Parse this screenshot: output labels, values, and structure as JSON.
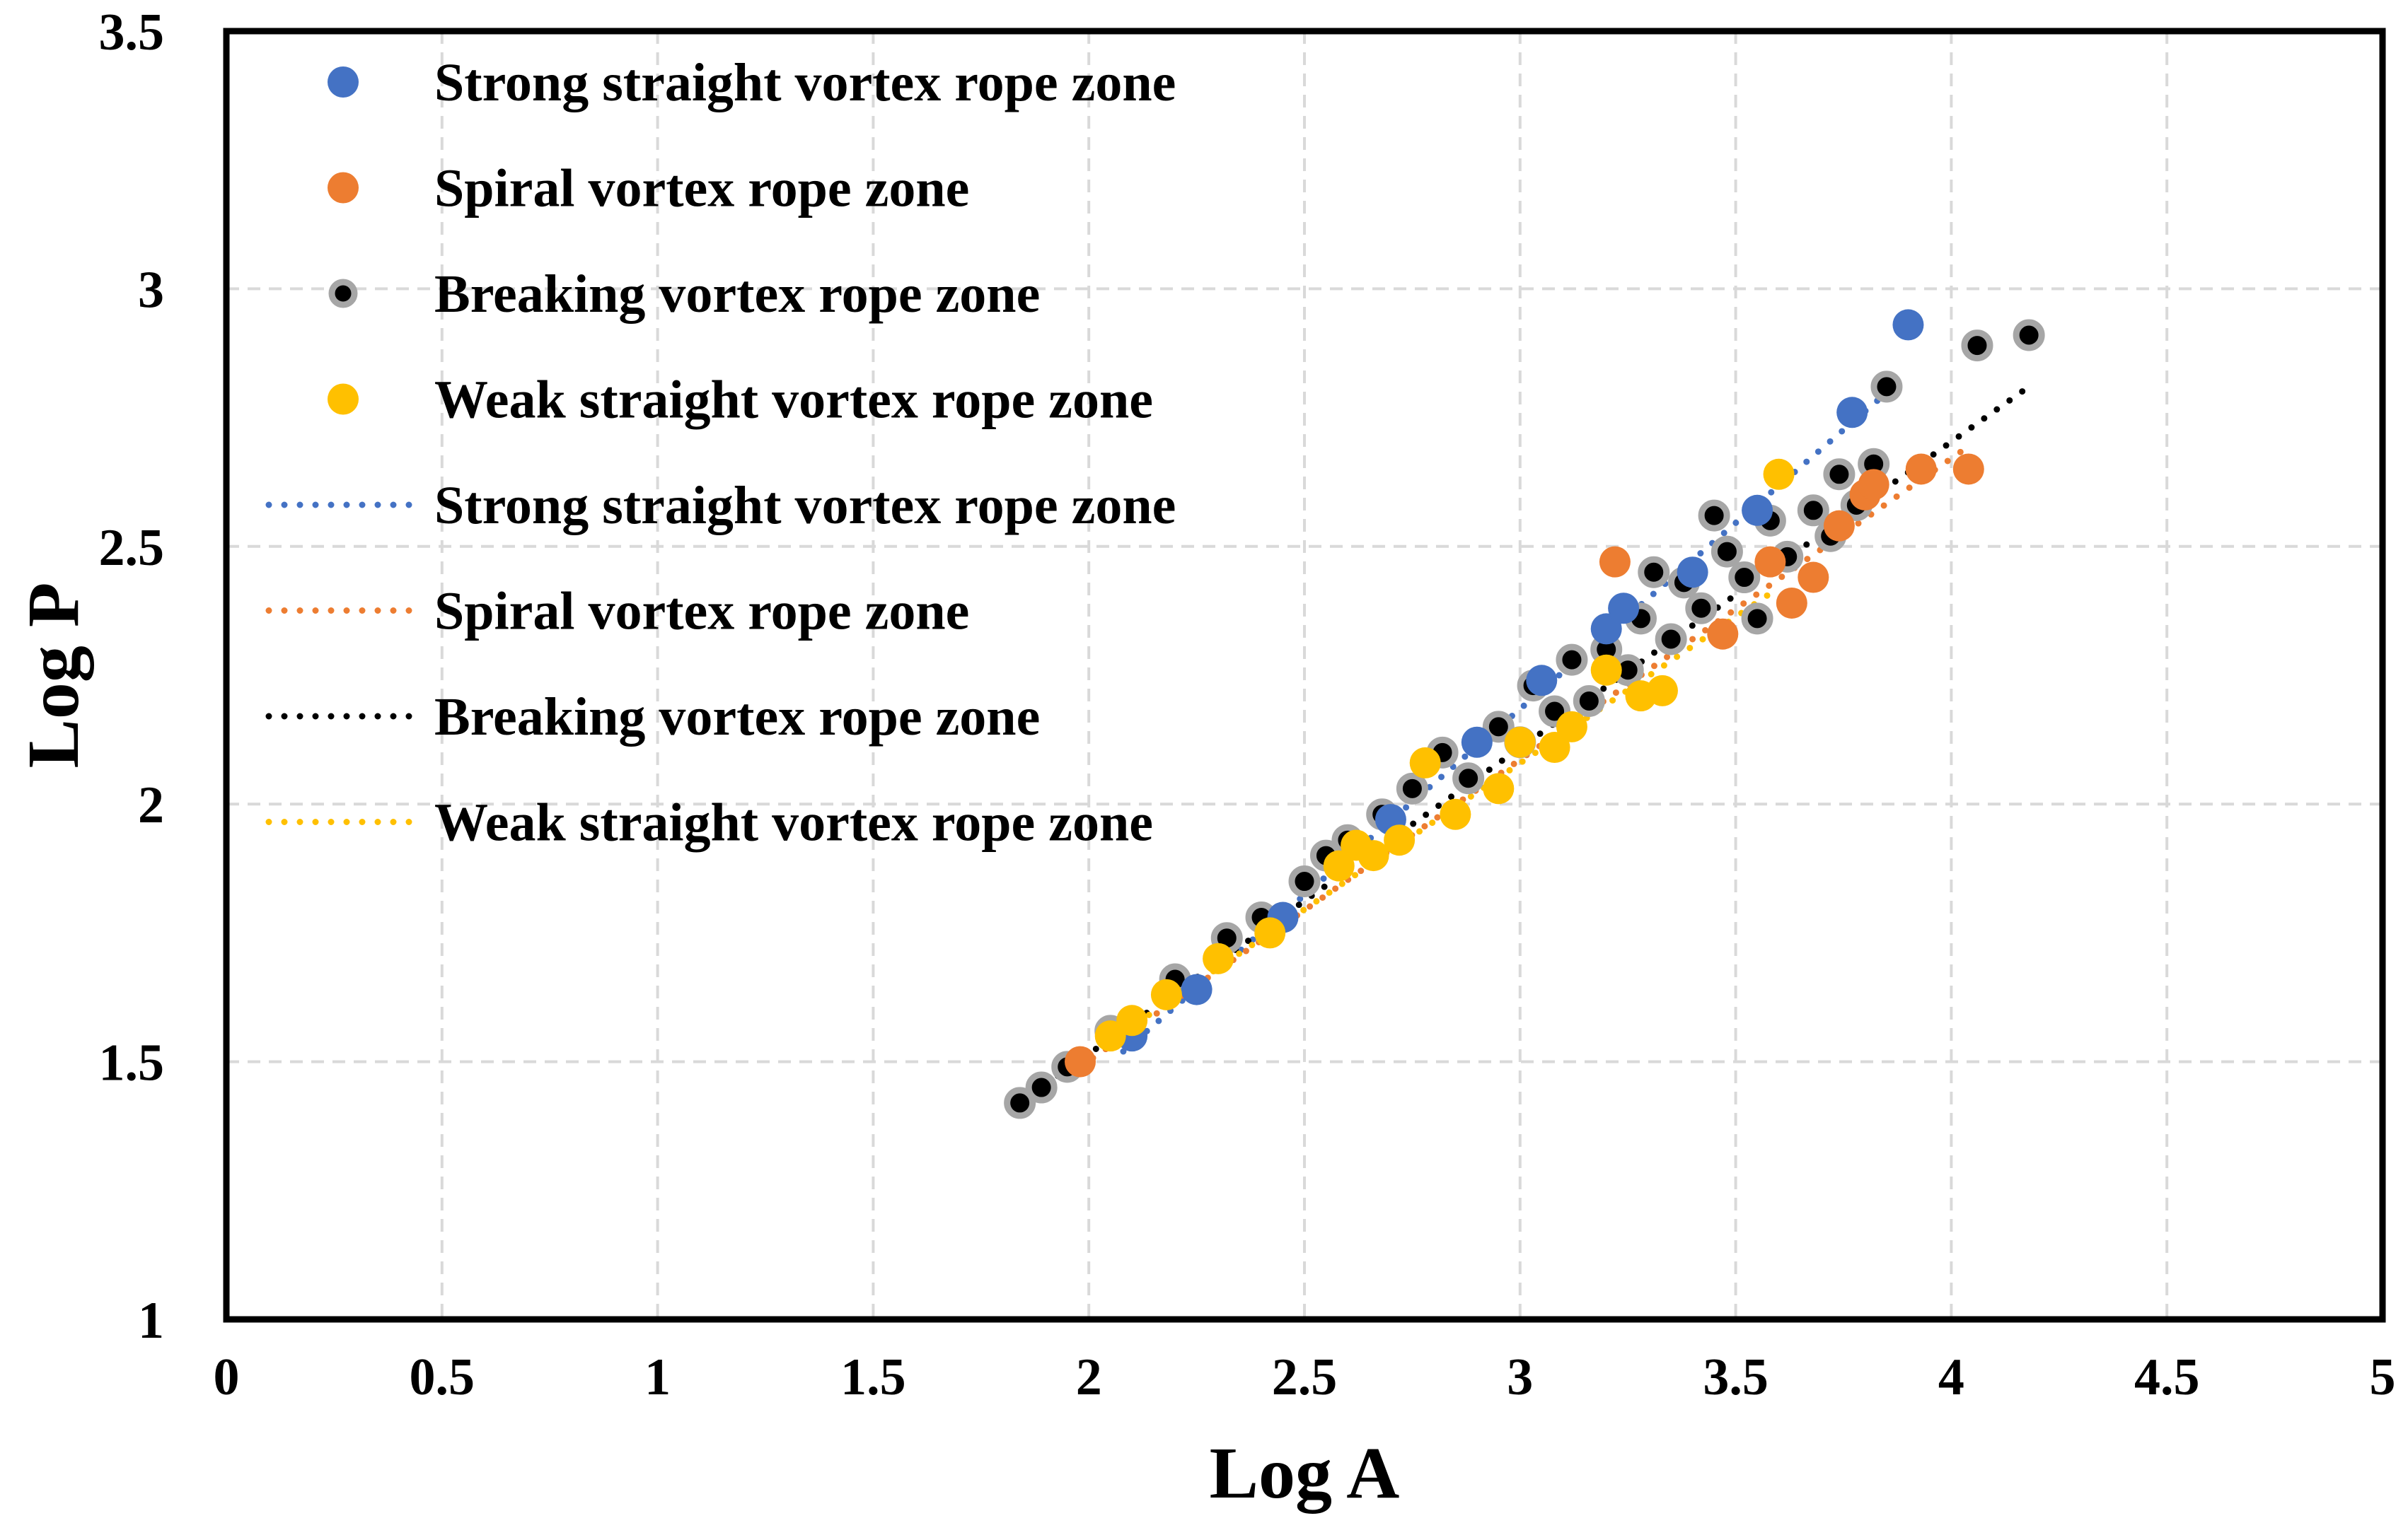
{
  "chart_data": {
    "type": "scatter",
    "xlabel": "Log A",
    "ylabel": "Log P",
    "xlim": [
      0,
      5
    ],
    "ylim": [
      1,
      3.5
    ],
    "xticks": [
      "0",
      "0.5",
      "1",
      "1.5",
      "2",
      "2.5",
      "3",
      "3.5",
      "4",
      "4.5",
      "5"
    ],
    "yticks": [
      "1",
      "1.5",
      "2",
      "2.5",
      "3",
      "3.5"
    ],
    "grid": true,
    "legend_position": "top-left",
    "colors": {
      "strong": "#4472C4",
      "spiral": "#ED7D31",
      "breaking": "#000000",
      "breaking_edge": "#A6A6A6",
      "weak": "#FFC000",
      "grid": "#D9D9D9"
    },
    "series": [
      {
        "name": "Strong straight vortex rope zone",
        "key": "strong",
        "x": [
          2.1,
          2.25,
          2.45,
          2.7,
          2.9,
          3.05,
          3.2,
          3.24,
          3.4,
          3.55,
          3.77,
          3.9
        ],
        "y": [
          1.55,
          1.64,
          1.78,
          1.97,
          2.12,
          2.24,
          2.34,
          2.38,
          2.45,
          2.57,
          2.76,
          2.93
        ]
      },
      {
        "name": "Spiral vortex rope zone",
        "key": "spiral",
        "x": [
          1.98,
          3.22,
          3.47,
          3.58,
          3.63,
          3.68,
          3.74,
          3.8,
          3.82,
          3.93,
          4.04
        ],
        "y": [
          1.5,
          2.47,
          2.33,
          2.47,
          2.39,
          2.44,
          2.54,
          2.6,
          2.62,
          2.65,
          2.65
        ]
      },
      {
        "name": "Breaking vortex rope zone",
        "key": "breaking",
        "x": [
          1.84,
          1.89,
          1.95,
          2.05,
          2.2,
          2.32,
          2.4,
          2.5,
          2.55,
          2.6,
          2.68,
          2.75,
          2.82,
          2.88,
          2.95,
          3.0,
          3.03,
          3.08,
          3.12,
          3.16,
          3.2,
          3.25,
          3.28,
          3.31,
          3.35,
          3.38,
          3.42,
          3.45,
          3.48,
          3.52,
          3.55,
          3.58,
          3.62,
          3.68,
          3.72,
          3.74,
          3.78,
          3.82,
          3.85,
          4.06,
          4.18
        ],
        "y": [
          1.42,
          1.45,
          1.49,
          1.56,
          1.66,
          1.74,
          1.78,
          1.85,
          1.9,
          1.93,
          1.98,
          2.03,
          2.1,
          2.05,
          2.15,
          2.12,
          2.23,
          2.18,
          2.28,
          2.2,
          2.3,
          2.26,
          2.36,
          2.45,
          2.32,
          2.43,
          2.38,
          2.56,
          2.49,
          2.44,
          2.36,
          2.55,
          2.48,
          2.57,
          2.52,
          2.64,
          2.58,
          2.66,
          2.81,
          2.89,
          2.91
        ]
      },
      {
        "name": "Weak straight vortex rope zone",
        "key": "weak",
        "x": [
          2.05,
          2.1,
          2.18,
          2.3,
          2.42,
          2.58,
          2.62,
          2.66,
          2.72,
          2.78,
          2.85,
          2.95,
          3.0,
          3.08,
          3.12,
          3.2,
          3.28,
          3.33,
          3.6
        ],
        "y": [
          1.55,
          1.58,
          1.63,
          1.7,
          1.75,
          1.88,
          1.92,
          1.9,
          1.93,
          2.08,
          1.98,
          2.03,
          2.12,
          2.11,
          2.15,
          2.26,
          2.21,
          2.22,
          2.64
        ]
      }
    ],
    "trendlines": [
      {
        "name": "Strong straight vortex rope zone",
        "key": "strong",
        "x": [
          2.08,
          3.88
        ],
        "y": [
          1.52,
          2.82
        ]
      },
      {
        "name": "Spiral vortex rope zone",
        "key": "spiral",
        "x": [
          1.98,
          4.05
        ],
        "y": [
          1.49,
          2.7
        ]
      },
      {
        "name": "Breaking vortex rope zone",
        "key": "breaking",
        "x": [
          1.84,
          4.18
        ],
        "y": [
          1.42,
          2.81
        ]
      },
      {
        "name": "Weak straight vortex rope zone",
        "key": "weak",
        "x": [
          2.05,
          3.6
        ],
        "y": [
          1.54,
          2.42
        ]
      }
    ],
    "legend": [
      {
        "label": "Strong straight vortex rope zone",
        "kind": "marker",
        "key": "strong"
      },
      {
        "label": "Spiral vortex rope zone",
        "kind": "marker",
        "key": "spiral"
      },
      {
        "label": "Breaking vortex rope zone",
        "kind": "marker",
        "key": "breaking"
      },
      {
        "label": "Weak straight vortex rope zone",
        "kind": "marker",
        "key": "weak"
      },
      {
        "label": "Strong straight vortex rope zone",
        "kind": "line",
        "key": "strong"
      },
      {
        "label": "Spiral vortex rope zone",
        "kind": "line",
        "key": "spiral"
      },
      {
        "label": "Breaking vortex rope zone",
        "kind": "line",
        "key": "breaking"
      },
      {
        "label": "Weak straight vortex rope zone",
        "kind": "line",
        "key": "weak"
      }
    ]
  }
}
